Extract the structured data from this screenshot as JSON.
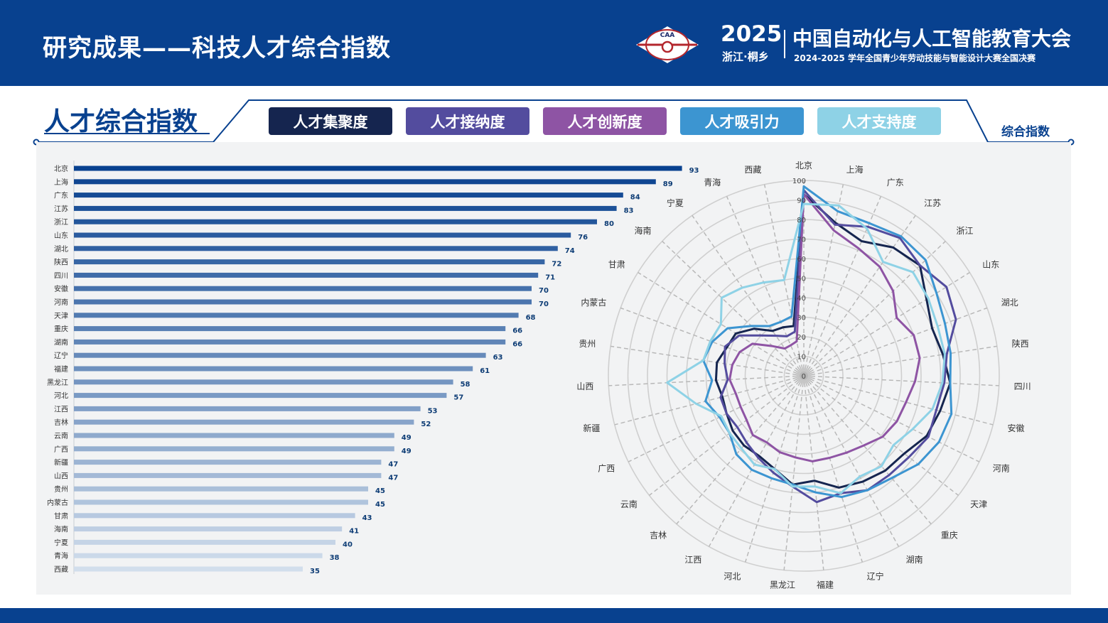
{
  "header": {
    "title": "研究成果——科技人才综合指数",
    "year": "2025",
    "place": "浙江·桐乡",
    "conference": "中国自动化与人工智能教育大会",
    "subtitle": "2024-2025 学年全国青少年劳动技能与智能设计大赛全国决赛",
    "logo_text": "CAA"
  },
  "section": {
    "title": "人才综合指数",
    "corner_label": "综合指数"
  },
  "legend": [
    {
      "label": "人才集聚度",
      "color": "#15254f"
    },
    {
      "label": "人才接纳度",
      "color": "#534c9e"
    },
    {
      "label": "人才创新度",
      "color": "#8e54a4"
    },
    {
      "label": "人才吸引力",
      "color": "#3c95d1"
    },
    {
      "label": "人才支持度",
      "color": "#8ed2e6"
    }
  ],
  "chart_data": [
    {
      "type": "bar",
      "orientation": "horizontal",
      "categories": [
        "北京",
        "上海",
        "广东",
        "江苏",
        "浙江",
        "山东",
        "湖北",
        "陕西",
        "四川",
        "安徽",
        "河南",
        "天津",
        "重庆",
        "湖南",
        "辽宁",
        "福建",
        "黑龙江",
        "河北",
        "江西",
        "吉林",
        "云南",
        "广西",
        "新疆",
        "山西",
        "贵州",
        "内蒙古",
        "甘肃",
        "海南",
        "宁夏",
        "青海",
        "西藏"
      ],
      "values": [
        93,
        89,
        84,
        83,
        80,
        76,
        74,
        72,
        71,
        70,
        70,
        68,
        66,
        66,
        63,
        61,
        58,
        57,
        53,
        52,
        49,
        49,
        47,
        47,
        45,
        45,
        43,
        41,
        40,
        38,
        35
      ],
      "xlim": [
        0,
        100
      ]
    },
    {
      "type": "radar",
      "categories": [
        "北京",
        "上海",
        "广东",
        "江苏",
        "浙江",
        "山东",
        "湖北",
        "陕西",
        "四川",
        "安徽",
        "河南",
        "天津",
        "重庆",
        "湖南",
        "辽宁",
        "福建",
        "黑龙江",
        "河北",
        "江西",
        "吉林",
        "云南",
        "广西",
        "新疆",
        "山西",
        "贵州",
        "内蒙古",
        "甘肃",
        "海南",
        "宁夏",
        "青海",
        "西藏"
      ],
      "radial_ticks": [
        0,
        10,
        20,
        30,
        40,
        50,
        60,
        70,
        80,
        90,
        100
      ],
      "rlim": [
        0,
        100
      ],
      "series": [
        {
          "name": "人才集聚度",
          "color": "#15254f",
          "values": [
            93,
            80,
            75,
            80,
            82,
            74,
            70,
            72,
            75,
            72,
            70,
            65,
            64,
            62,
            60,
            54,
            56,
            50,
            47,
            47,
            46,
            44,
            43,
            45,
            45,
            42,
            41,
            35,
            28,
            27,
            26
          ]
        },
        {
          "name": "人才接纳度",
          "color": "#534c9e",
          "values": [
            95,
            79,
            83,
            86,
            82,
            86,
            83,
            74,
            72,
            70,
            71,
            68,
            67,
            67,
            63,
            65,
            57,
            52,
            48,
            45,
            43,
            44,
            44,
            39,
            41,
            43,
            39,
            30,
            25,
            22,
            23
          ]
        },
        {
          "name": "人才创新度",
          "color": "#8e54a4",
          "values": [
            93,
            76,
            71,
            68,
            63,
            56,
            60,
            60,
            57,
            54,
            53,
            51,
            47,
            45,
            44,
            44,
            42,
            41,
            39,
            40,
            37,
            36,
            36,
            38,
            37,
            35,
            31,
            22,
            17,
            17,
            18
          ]
        },
        {
          "name": "人才吸引力",
          "color": "#3c95d1",
          "values": [
            97,
            86,
            85,
            87,
            86,
            80,
            77,
            76,
            75,
            78,
            77,
            74,
            69,
            67,
            65,
            60,
            56,
            55,
            55,
            53,
            48,
            48,
            52,
            47,
            52,
            50,
            46,
            37,
            31,
            30,
            31
          ]
        },
        {
          "name": "人才支持度",
          "color": "#8ed2e6",
          "values": [
            88,
            89,
            82,
            71,
            77,
            75,
            73,
            73,
            71,
            68,
            62,
            58,
            61,
            59,
            63,
            57,
            57,
            50,
            52,
            49,
            48,
            47,
            57,
            70,
            52,
            51,
            50,
            58,
            55,
            52,
            50
          ]
        }
      ]
    }
  ]
}
